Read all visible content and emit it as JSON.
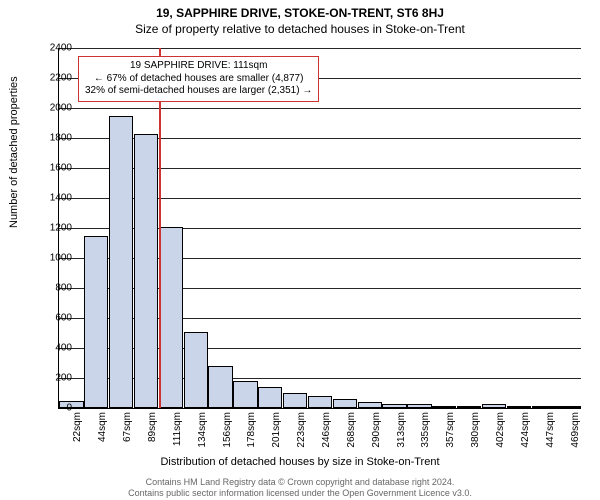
{
  "title_main": "19, SAPPHIRE DRIVE, STOKE-ON-TRENT, ST6 8HJ",
  "title_sub": "Size of property relative to detached houses in Stoke-on-Trent",
  "y_axis_label": "Number of detached properties",
  "x_axis_label": "Distribution of detached houses by size in Stoke-on-Trent",
  "chart": {
    "type": "histogram",
    "ylim": [
      0,
      2400
    ],
    "ytick_step": 200,
    "bar_fill": "#cad5ea",
    "bar_border": "#000000",
    "grid_color": "#000000",
    "ref_line_color": "#cc3333",
    "ref_line_x_index": 4,
    "categories": [
      "22sqm",
      "44sqm",
      "67sqm",
      "89sqm",
      "111sqm",
      "134sqm",
      "156sqm",
      "178sqm",
      "201sqm",
      "223sqm",
      "246sqm",
      "268sqm",
      "290sqm",
      "313sqm",
      "335sqm",
      "357sqm",
      "380sqm",
      "402sqm",
      "424sqm",
      "447sqm",
      "469sqm"
    ],
    "values": [
      50,
      1150,
      1950,
      1830,
      1210,
      510,
      280,
      180,
      140,
      100,
      80,
      60,
      40,
      30,
      25,
      15,
      10,
      30,
      5,
      10,
      5
    ]
  },
  "annotation": {
    "line1": "19 SAPPHIRE DRIVE: 111sqm",
    "line2": "← 67% of detached houses are smaller (4,877)",
    "line3": "32% of semi-detached houses are larger (2,351) →"
  },
  "footer": {
    "line1": "Contains HM Land Registry data © Crown copyright and database right 2024.",
    "line2": "Contains public sector information licensed under the Open Government Licence v3.0."
  }
}
